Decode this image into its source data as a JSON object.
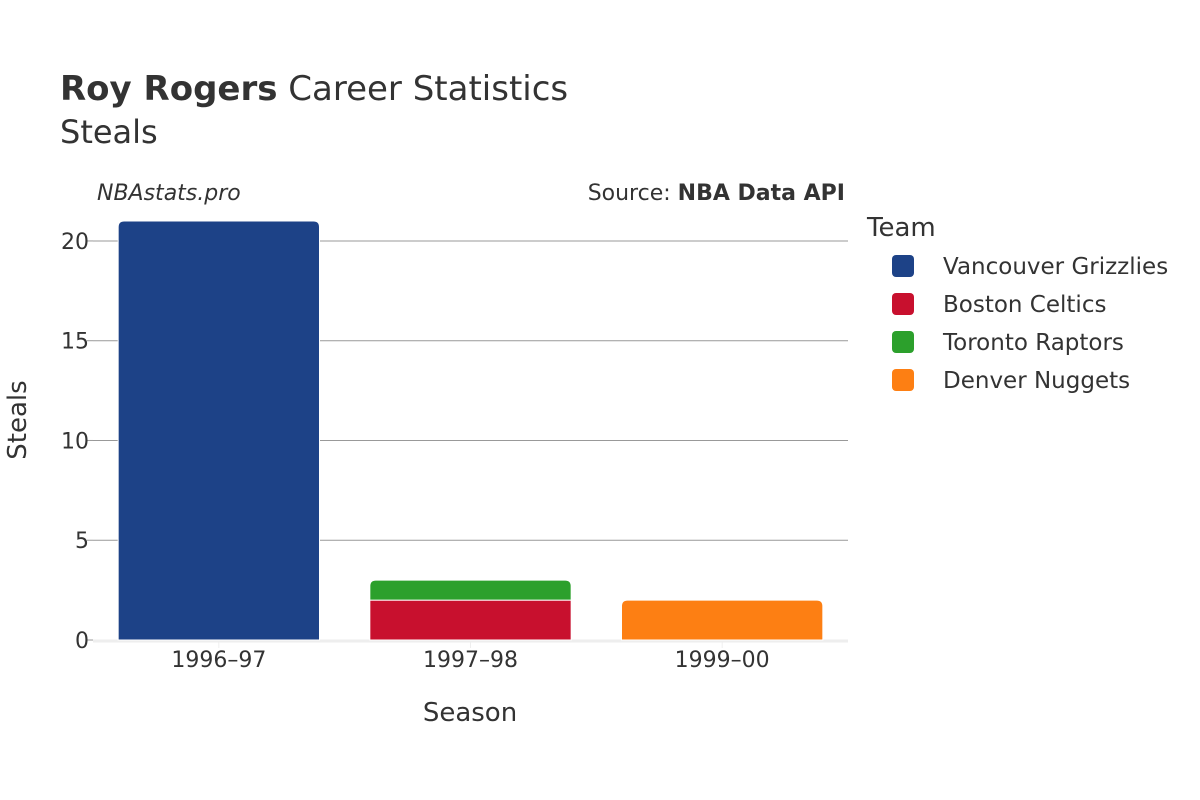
{
  "header": {
    "title_bold": "Roy Rogers",
    "title_rest": " Career Statistics",
    "subtitle": "Steals",
    "site": "NBAstats.pro",
    "source_prefix": "Source: ",
    "source_name": "NBA Data API"
  },
  "colors": {
    "Vancouver Grizzlies": "#1d4287",
    "Boston Celtics": "#c8102e",
    "Toronto Raptors": "#2ca02c",
    "Denver Nuggets": "#fd7f13",
    "grid": "#999999",
    "baseline": "#eeeeee"
  },
  "chart_data": {
    "type": "bar",
    "stacked": true,
    "title": "Roy Rogers Career Statistics",
    "subtitle": "Steals",
    "xlabel": "Season",
    "ylabel": "Steals",
    "ylim": [
      0,
      21
    ],
    "yticks": [
      0,
      5,
      10,
      15,
      20
    ],
    "categories": [
      "1996–97",
      "1997–98",
      "1999–00"
    ],
    "series": [
      {
        "name": "Vancouver Grizzlies",
        "values": [
          21,
          0,
          0
        ]
      },
      {
        "name": "Boston Celtics",
        "values": [
          0,
          2,
          0
        ]
      },
      {
        "name": "Toronto Raptors",
        "values": [
          0,
          1,
          0
        ]
      },
      {
        "name": "Denver Nuggets",
        "values": [
          0,
          0,
          2
        ]
      }
    ],
    "legend": {
      "title": "Team",
      "position": "right",
      "entries": [
        "Vancouver Grizzlies",
        "Boston Celtics",
        "Toronto Raptors",
        "Denver Nuggets"
      ]
    }
  }
}
